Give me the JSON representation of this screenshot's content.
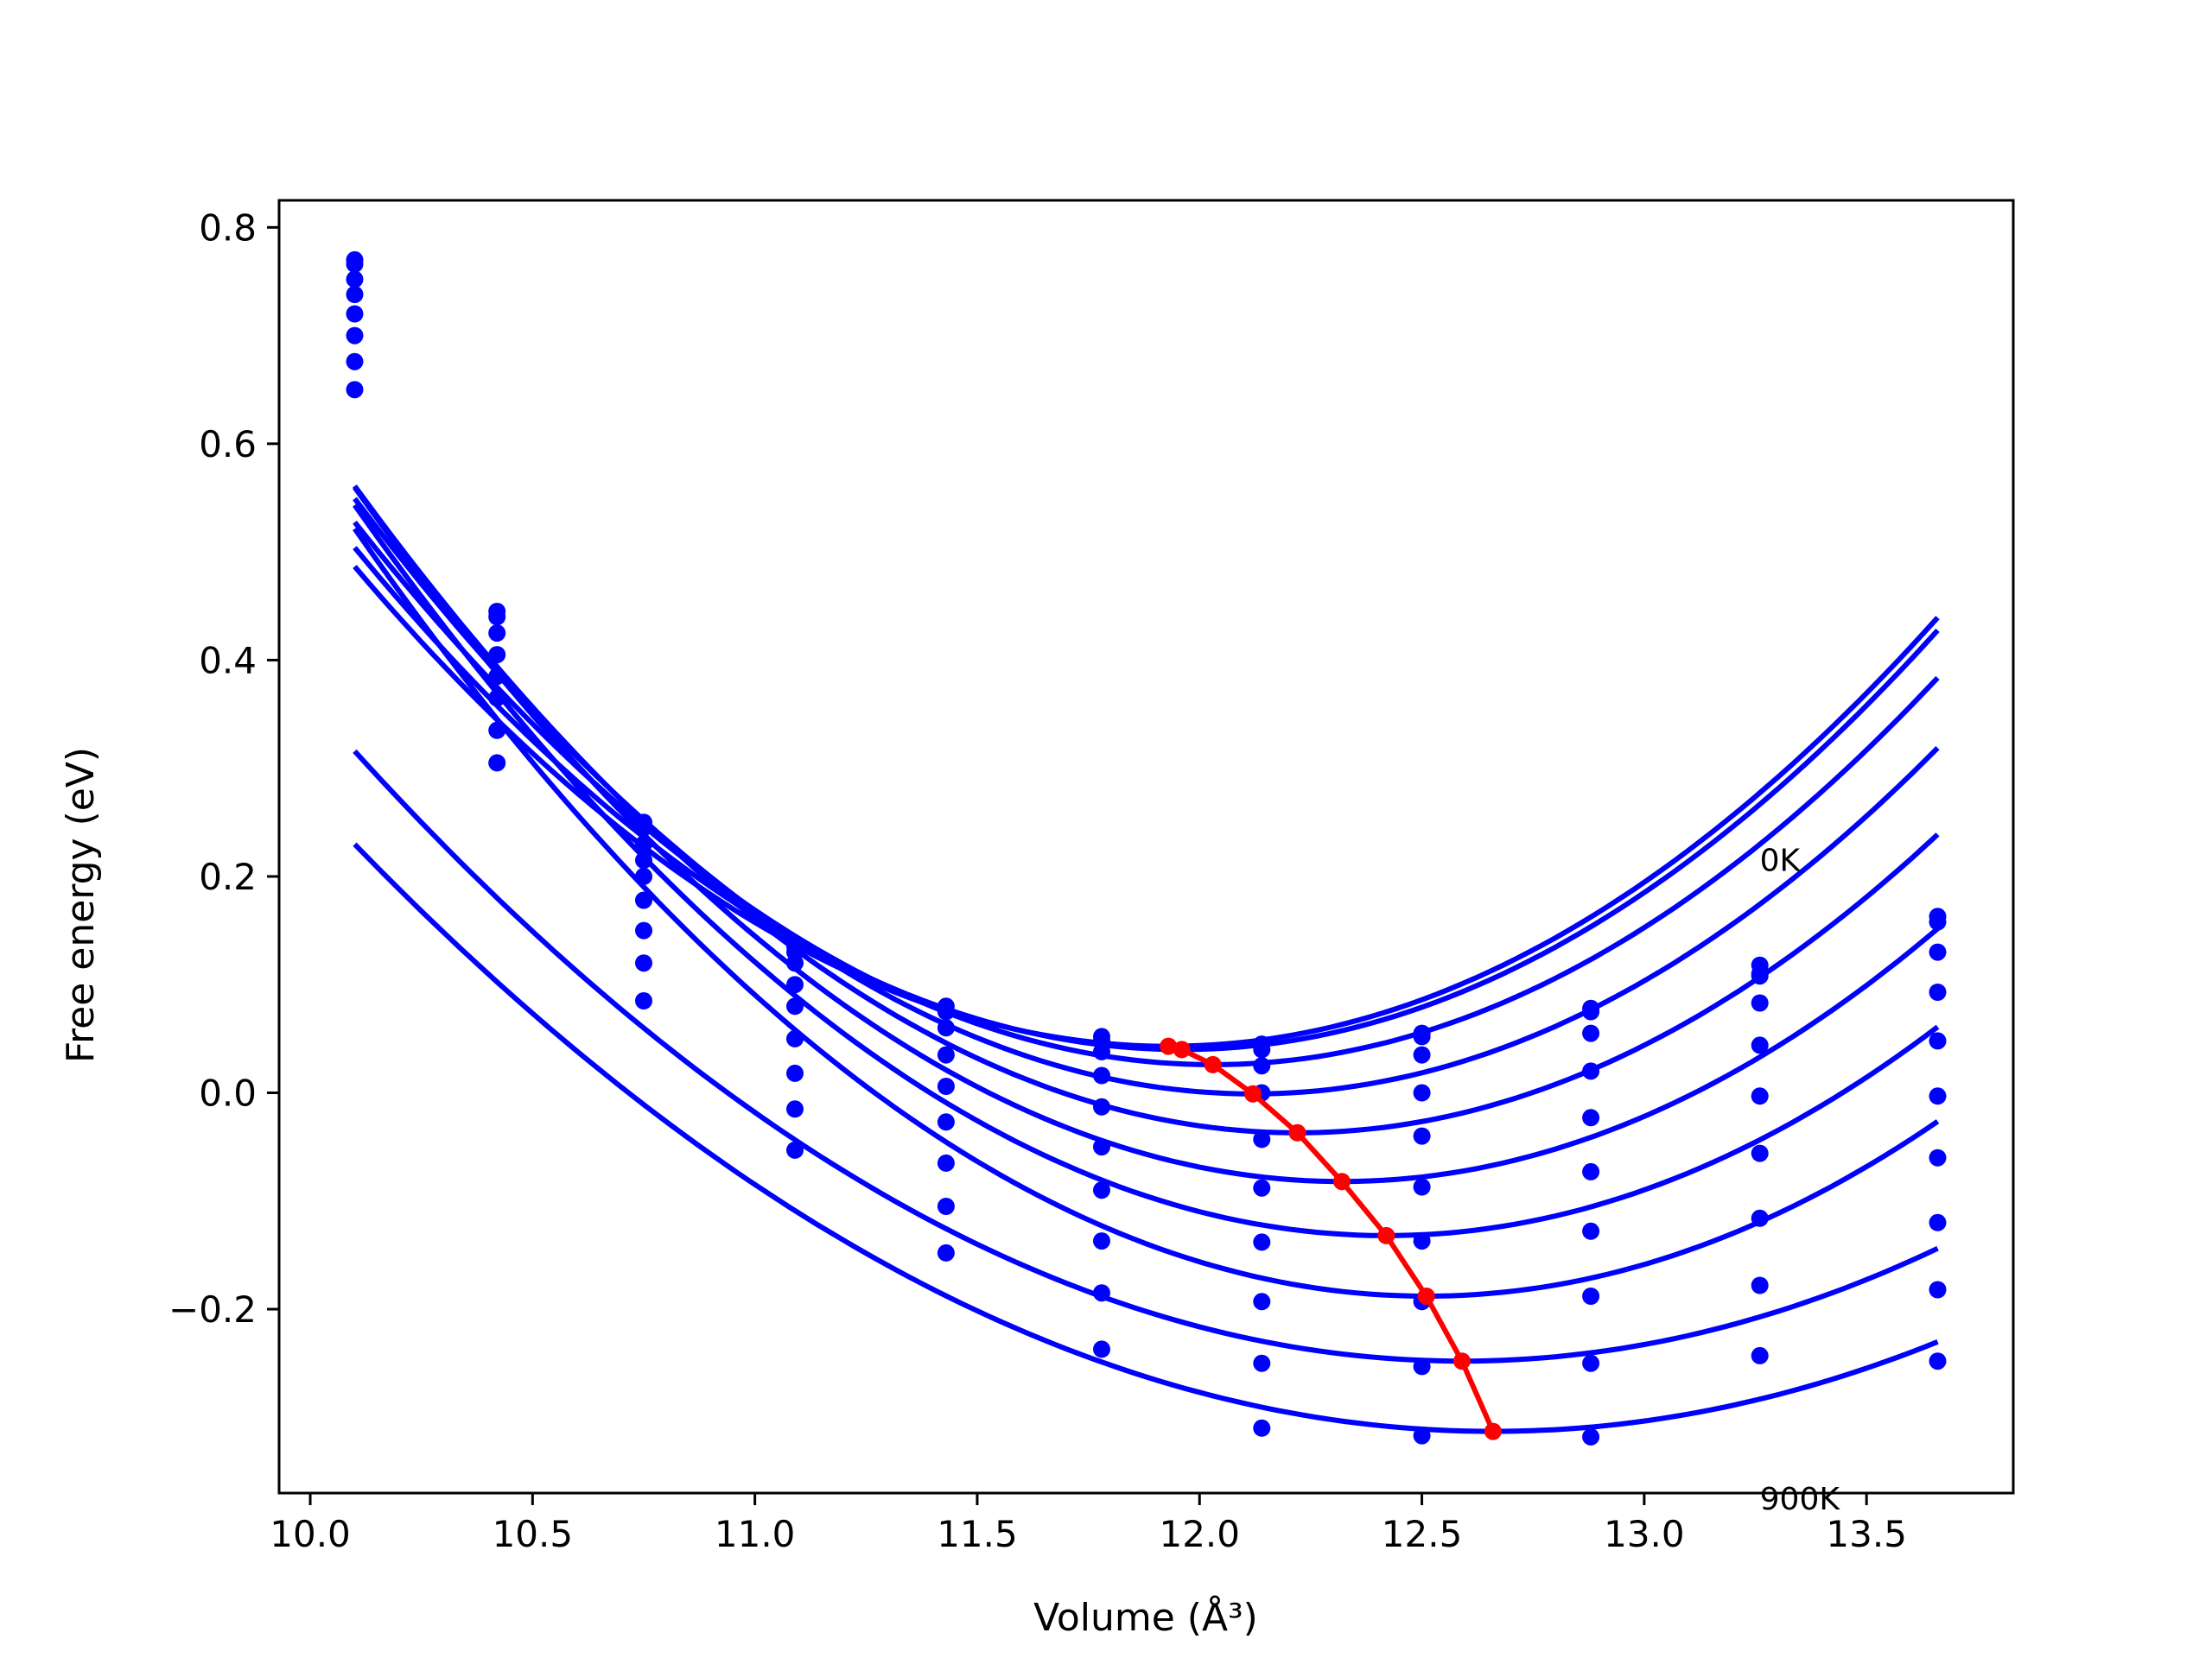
{
  "chart_data": {
    "type": "line",
    "title": "",
    "xlabel": "Volume (Å³)",
    "ylabel": "Free energy (eV)",
    "xlim": [
      9.93,
      13.83
    ],
    "ylim": [
      -0.37,
      0.825
    ],
    "xticks": [
      10.0,
      10.5,
      11.0,
      11.5,
      12.0,
      12.5,
      13.0,
      13.5
    ],
    "xtick_labels": [
      "10.0",
      "10.5",
      "11.0",
      "11.5",
      "12.0",
      "12.5",
      "13.0",
      "13.5"
    ],
    "yticks": [
      -0.2,
      0.0,
      0.2,
      0.4,
      0.6,
      0.8
    ],
    "ytick_labels": [
      "−0.2",
      "0.0",
      "0.2",
      "0.4",
      "0.6",
      "0.8"
    ],
    "grid": false,
    "annotations": [
      {
        "text": "0K",
        "x": 13.26,
        "y": 0.205
      },
      {
        "text": "900K",
        "x": 13.26,
        "y": -0.385
      }
    ],
    "volumes": [
      10.1,
      10.42,
      10.75,
      11.09,
      11.43,
      11.78,
      12.14,
      12.5,
      12.88,
      13.26,
      13.66
    ],
    "series": [
      {
        "energies": [
          0.77,
          0.445,
          0.25,
          0.135,
          0.08,
          0.052,
          0.045,
          0.055,
          0.078,
          0.11,
          0.163
        ],
        "fit_min": [
          11.93,
          0.043
        ],
        "fit_range": [
          10.1,
          13.66
        ]
      },
      {
        "energies": [
          0.766,
          0.44,
          0.245,
          0.13,
          0.075,
          0.048,
          0.04,
          0.052,
          0.075,
          0.118,
          0.158
        ],
        "fit_min": [
          11.96,
          0.04
        ],
        "fit_range": [
          10.1,
          13.66
        ]
      },
      {
        "energies": [
          0.752,
          0.425,
          0.23,
          0.12,
          0.06,
          0.038,
          0.025,
          0.035,
          0.055,
          0.108,
          0.13
        ],
        "fit_min": [
          12.03,
          0.026
        ],
        "fit_range": [
          10.1,
          13.66
        ]
      },
      {
        "energies": [
          0.738,
          0.405,
          0.215,
          0.1,
          0.035,
          0.016,
          0.0,
          0.0,
          0.02,
          0.083,
          0.093
        ],
        "fit_min": [
          12.12,
          -0.001
        ],
        "fit_range": [
          10.1,
          13.66
        ]
      },
      {
        "energies": [
          0.72,
          0.385,
          0.2,
          0.08,
          0.006,
          -0.013,
          -0.043,
          -0.04,
          -0.023,
          0.044,
          0.048
        ],
        "fit_min": [
          12.22,
          -0.037
        ],
        "fit_range": [
          10.1,
          13.66
        ]
      },
      {
        "energies": [
          0.7,
          0.365,
          0.178,
          0.05,
          -0.027,
          -0.05,
          -0.088,
          -0.087,
          -0.073,
          -0.003,
          -0.003
        ],
        "fit_min": [
          12.32,
          -0.082
        ],
        "fit_range": [
          10.1,
          13.66
        ]
      },
      {
        "energies": [
          0.676,
          0.335,
          0.15,
          0.018,
          -0.065,
          -0.09,
          -0.138,
          -0.137,
          -0.128,
          -0.056,
          -0.06
        ],
        "fit_min": [
          12.42,
          -0.132
        ],
        "fit_range": [
          10.1,
          13.66
        ]
      },
      {
        "energies": [
          0.65,
          0.305,
          0.12,
          -0.015,
          -0.105,
          -0.137,
          -0.193,
          -0.193,
          -0.188,
          -0.116,
          -0.12
        ],
        "fit_min": [
          12.51,
          -0.188
        ],
        "fit_range": [
          10.1,
          13.66
        ]
      },
      {
        "energies": [
          null,
          null,
          0.085,
          -0.053,
          -0.148,
          -0.185,
          -0.25,
          -0.253,
          -0.25,
          -0.178,
          -0.182
        ],
        "fit_min": [
          12.59,
          -0.248
        ],
        "fit_range": [
          10.1,
          13.66
        ]
      },
      {
        "energies": [
          null,
          null,
          null,
          null,
          null,
          -0.237,
          -0.31,
          -0.317,
          -0.318,
          -0.243,
          -0.248
        ],
        "fit_min": [
          12.66,
          -0.313
        ],
        "fit_range": [
          10.1,
          13.66
        ]
      }
    ],
    "minimum_curve": {
      "x": [
        11.93,
        11.96,
        12.03,
        12.12,
        12.22,
        12.32,
        12.42,
        12.51,
        12.59,
        12.66
      ],
      "y": [
        0.043,
        0.04,
        0.026,
        -0.001,
        -0.037,
        -0.082,
        -0.132,
        -0.188,
        -0.248,
        -0.313
      ]
    },
    "colors": {
      "fits": "#0000ff",
      "points": "#0000ff",
      "minimum_curve": "#ff0000",
      "axes": "#000000"
    }
  }
}
